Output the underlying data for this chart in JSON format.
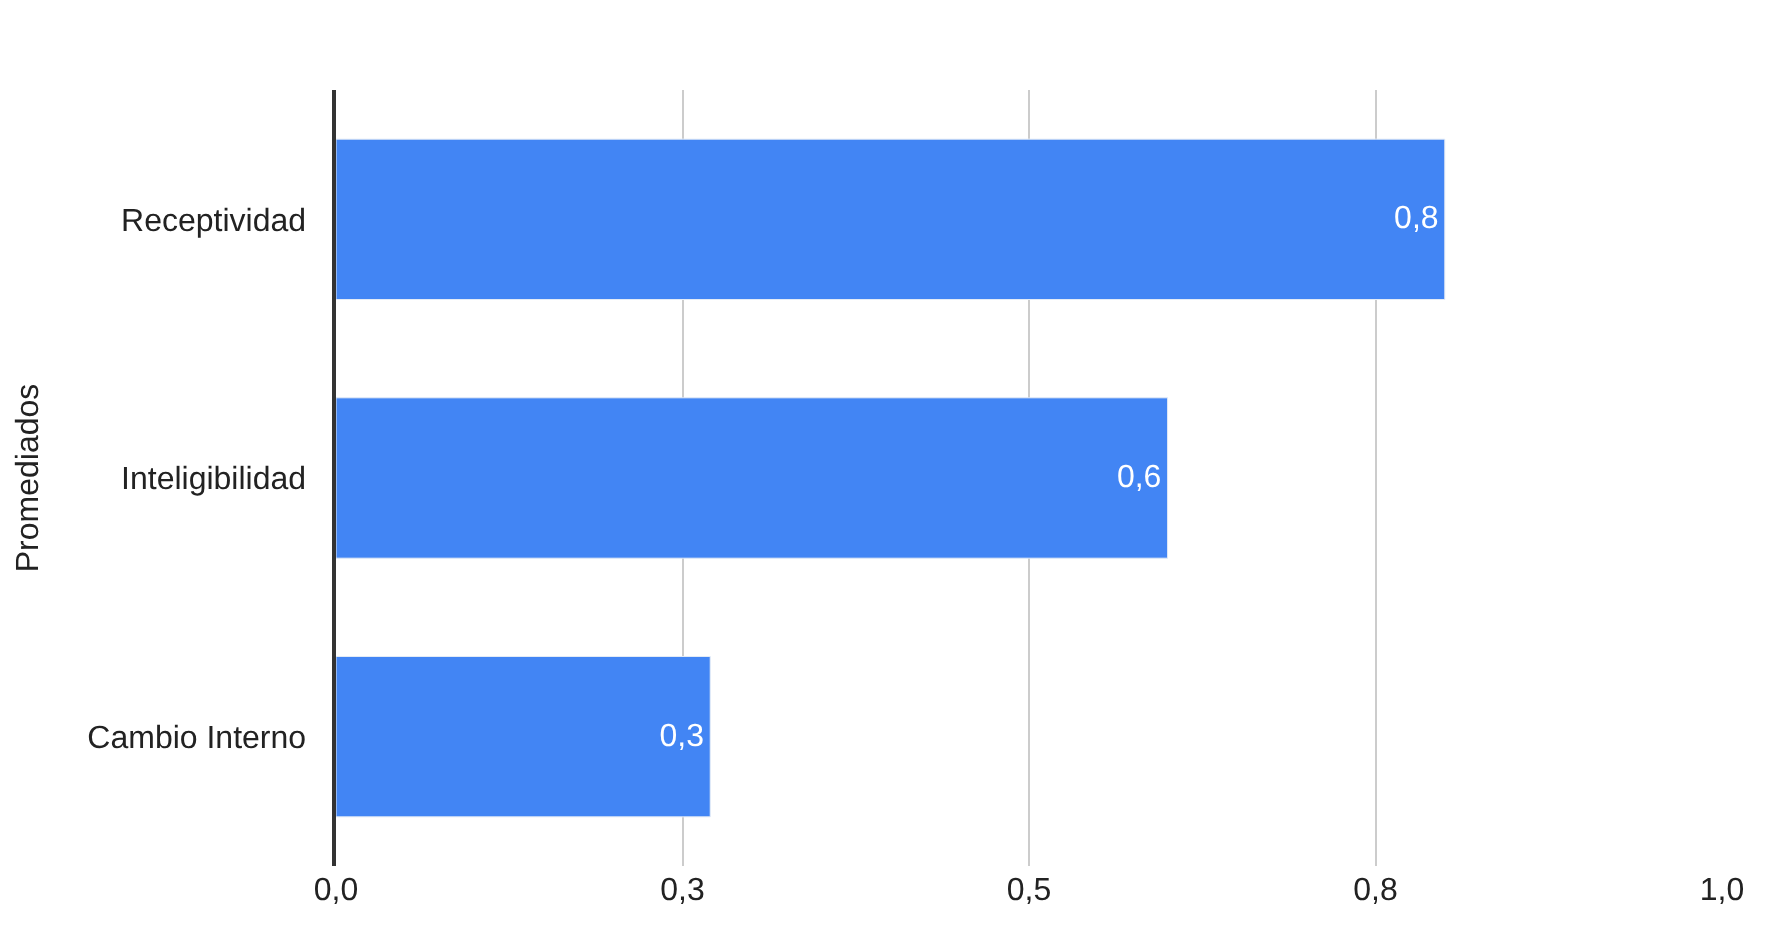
{
  "chart_data": {
    "type": "bar",
    "orientation": "horizontal",
    "ylabel": "Promediados",
    "categories": [
      "Receptividad",
      "Inteligibilidad",
      "Cambio Interno"
    ],
    "values": [
      0.8,
      0.6,
      0.27
    ],
    "value_labels": [
      "0,8",
      "0,6",
      "0,3"
    ],
    "color": "#4285f4",
    "xlim": [
      0,
      1
    ],
    "xticks": [
      {
        "value": 0,
        "label": "0,0"
      },
      {
        "value": 0.25,
        "label": "0,3"
      },
      {
        "value": 0.5,
        "label": "0,5"
      },
      {
        "value": 0.75,
        "label": "0,8"
      },
      {
        "value": 1,
        "label": "1,0"
      }
    ],
    "grid": "x"
  }
}
